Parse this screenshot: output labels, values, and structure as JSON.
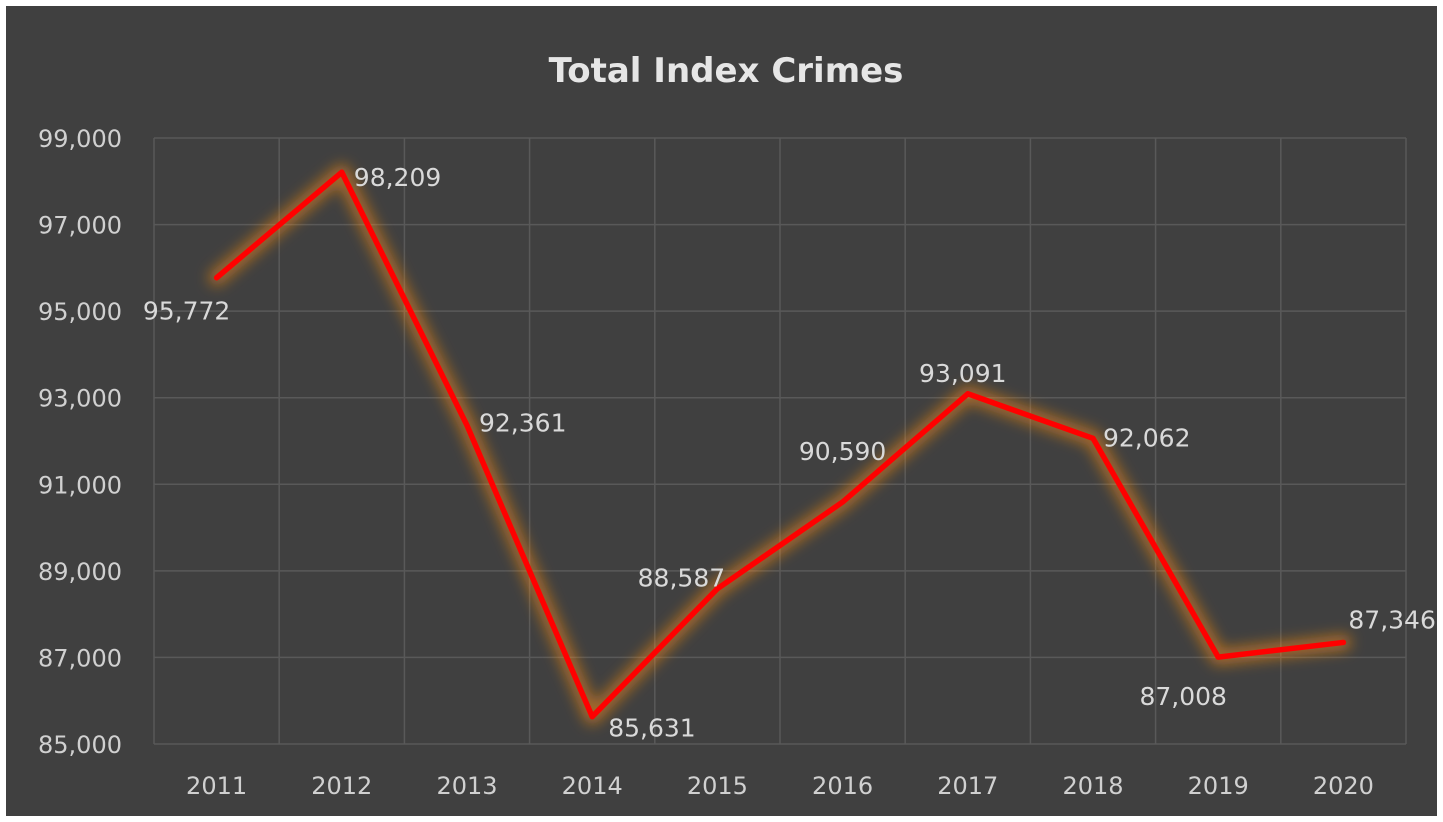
{
  "chart_data": {
    "type": "line",
    "title": "Total Index Crimes",
    "categories": [
      "2011",
      "2012",
      "2013",
      "2014",
      "2015",
      "2016",
      "2017",
      "2018",
      "2019",
      "2020"
    ],
    "series": [
      {
        "values": [
          95772,
          98209,
          92361,
          85631,
          88587,
          90590,
          93091,
          92062,
          87008,
          87346
        ]
      }
    ],
    "data_labels": [
      "95,772",
      "98,209",
      "92,361",
      "85,631",
      "88,587",
      "90,590",
      "93,091",
      "92,062",
      "87,008",
      "87,346"
    ],
    "y_ticks": [
      "85,000",
      "87,000",
      "89,000",
      "91,000",
      "93,000",
      "95,000",
      "97,000",
      "99,000"
    ],
    "ylim": [
      85000,
      99000
    ],
    "grid": true,
    "colors": {
      "background": "#404040",
      "line": "#ff0000",
      "glow": "#ff8c1a",
      "grid": "#595959",
      "text": "#d9d9d9"
    }
  }
}
